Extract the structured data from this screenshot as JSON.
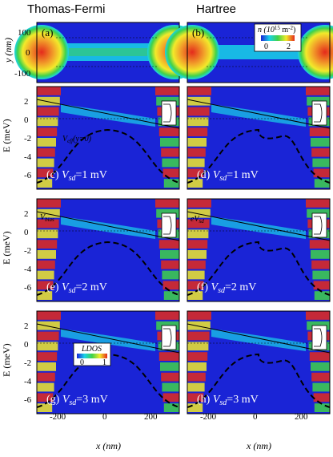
{
  "figure": {
    "column_titles": [
      "Thomas-Fermi",
      "Hartree"
    ],
    "panel_labels": {
      "a": "(a)",
      "b": "(b)",
      "c": "(c)",
      "d": "(d)",
      "e": "(e)",
      "f": "(f)",
      "g": "(g)",
      "h": "(h)"
    },
    "vsd_labels": {
      "c": "=1 mV",
      "d": "=1 mV",
      "e": "=2 mV",
      "f": "=2 mV",
      "g": "=3 mV",
      "h": "=3 mV"
    },
    "vsd_symbol": "V",
    "vsd_subscript": "sd",
    "density_axis": {
      "label": "y (nm)",
      "ticks": [
        "100",
        "0",
        "-100"
      ]
    },
    "energy_axis": {
      "label": "E (meV)",
      "ticks": [
        "2",
        "0",
        "-2",
        "-4",
        "-6"
      ]
    },
    "x_axis": {
      "label": "x (nm)",
      "ticks": [
        "-200",
        "0",
        "200"
      ]
    },
    "density_colorbar": {
      "title": "n (10",
      "exponent": "15",
      "unit": " m",
      "unit_exp": "-2",
      "close": ")",
      "tick_min": "0",
      "tick_max": "2"
    },
    "ldos_colorbar": {
      "title": "LDOS",
      "tick_min": "0",
      "tick_max": "1"
    },
    "annotations": {
      "veff": "V",
      "veff_sub": "eff",
      "veff_arg": "(y=0)",
      "vbias": "V",
      "vbias_sub": "bias",
      "evsd": "eV",
      "evsd_sub": "sd"
    },
    "colors": {
      "background_blue": "#1a24d6",
      "deep_blue": "#0a0fb0",
      "cyan": "#19d3e8",
      "green": "#3fd24a",
      "yellow": "#f2ea2a",
      "red": "#e42a1c"
    }
  }
}
